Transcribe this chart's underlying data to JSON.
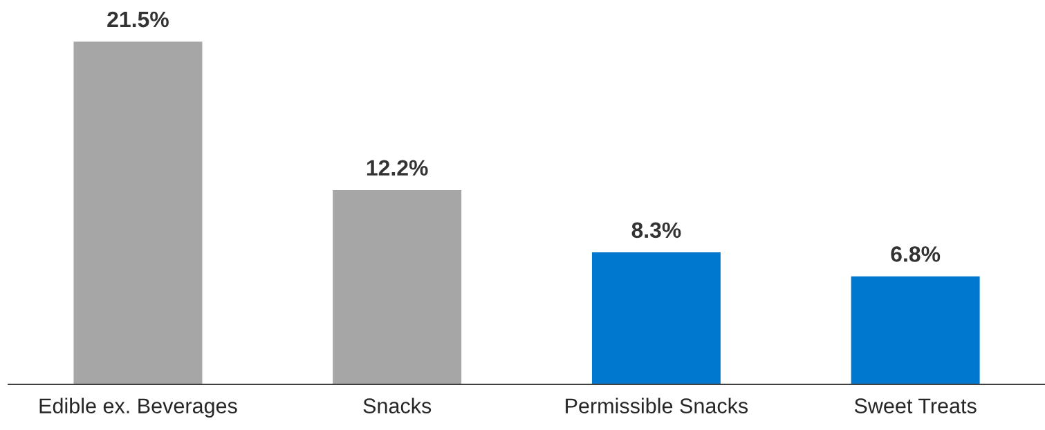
{
  "chart_data": {
    "type": "bar",
    "categories": [
      "Edible ex. Beverages",
      "Snacks",
      "Permissible Snacks",
      "Sweet Treats"
    ],
    "values": [
      21.5,
      12.2,
      8.3,
      6.8
    ],
    "colors": [
      "#a6a6a6",
      "#a6a6a6",
      "#0078d0",
      "#0078d0"
    ],
    "value_labels": [
      "21.5%",
      "12.2%",
      "8.3%",
      "6.8%"
    ],
    "grid": false,
    "legend": false
  }
}
